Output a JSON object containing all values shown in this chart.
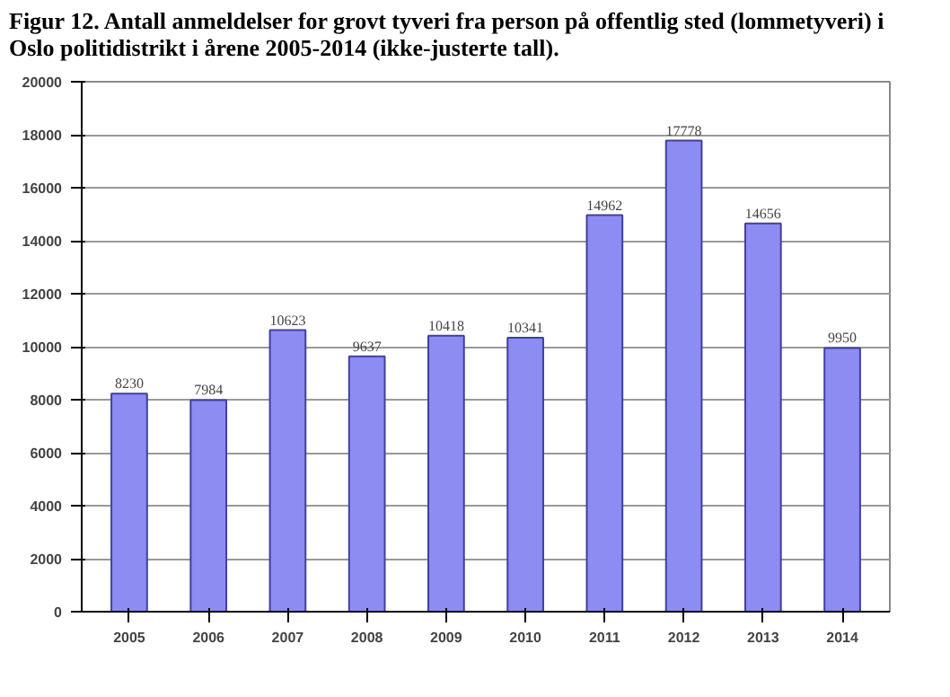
{
  "chart_data": {
    "type": "bar",
    "title": "Figur 12. Antall anmeldelser for grovt tyveri fra person på offentlig sted (lommetyveri) i Oslo politidistrikt i årene 2005-2014 (ikke-justerte tall).",
    "categories": [
      "2005",
      "2006",
      "2007",
      "2008",
      "2009",
      "2010",
      "2011",
      "2012",
      "2013",
      "2014"
    ],
    "values": [
      8230,
      7984,
      10623,
      9637,
      10418,
      10341,
      14962,
      17778,
      14656,
      9950
    ],
    "color": "#8c8cf2",
    "ylim": [
      0,
      20000
    ],
    "yticks": [
      0,
      2000,
      4000,
      6000,
      8000,
      10000,
      12000,
      14000,
      16000,
      18000,
      20000
    ],
    "grid": "y",
    "data_labels": true
  }
}
